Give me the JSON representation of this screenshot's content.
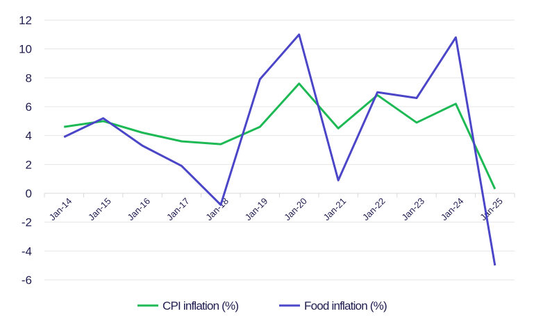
{
  "chart_data": {
    "type": "line",
    "categories": [
      "Jan-14",
      "Jan-15",
      "Jan-16",
      "Jan-17",
      "Jan-18",
      "Jan-19",
      "Jan-20",
      "Jan-21",
      "Jan-22",
      "Jan-23",
      "Jan-24",
      "Jan-25"
    ],
    "ylim": [
      -6,
      12
    ],
    "yticks": [
      "-6",
      "-4",
      "-2",
      "0",
      "2",
      "4",
      "6",
      "8",
      "10",
      "12"
    ],
    "grid": true,
    "legend_position": "bottom",
    "series": [
      {
        "name": "CPI inflation (%)",
        "color": "#1db954",
        "values": [
          4.6,
          5.0,
          4.2,
          3.6,
          3.4,
          4.6,
          7.6,
          4.5,
          6.8,
          4.9,
          6.2,
          0.3
        ]
      },
      {
        "name": "Food inflation (%)",
        "color": "#4b45c8",
        "values": [
          3.9,
          5.2,
          3.3,
          1.9,
          -0.8,
          7.9,
          11.0,
          0.9,
          7.0,
          6.6,
          10.8,
          -5.0
        ]
      }
    ]
  }
}
